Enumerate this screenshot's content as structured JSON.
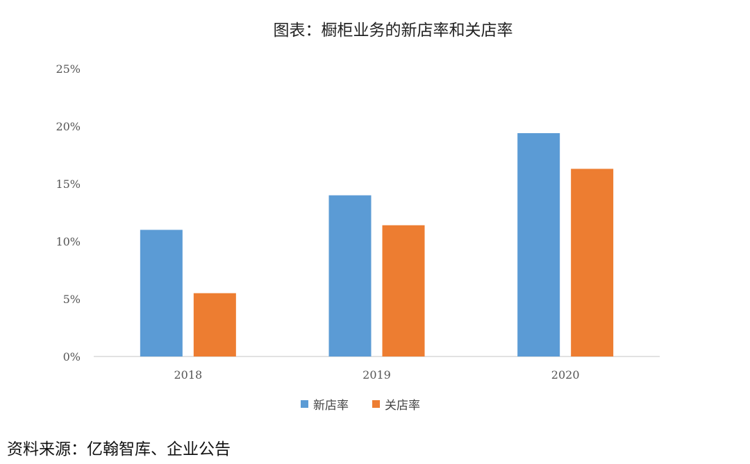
{
  "chart_data": {
    "type": "bar",
    "title": "图表：橱柜业务的新店率和关店率",
    "categories": [
      "2018",
      "2019",
      "2020"
    ],
    "series": [
      {
        "name": "新店率",
        "values": [
          11.0,
          14.0,
          19.4
        ],
        "color": "#5B9BD5"
      },
      {
        "name": "关店率",
        "values": [
          5.5,
          11.4,
          16.3
        ],
        "color": "#ED7D31"
      }
    ],
    "yticks": [
      "0%",
      "5%",
      "10%",
      "15%",
      "20%",
      "25%"
    ],
    "ylim": [
      0,
      25
    ],
    "unit": "%",
    "grid": false,
    "legend_position": "bottom"
  },
  "source_text": "资料来源：亿翰智库、企业公告"
}
